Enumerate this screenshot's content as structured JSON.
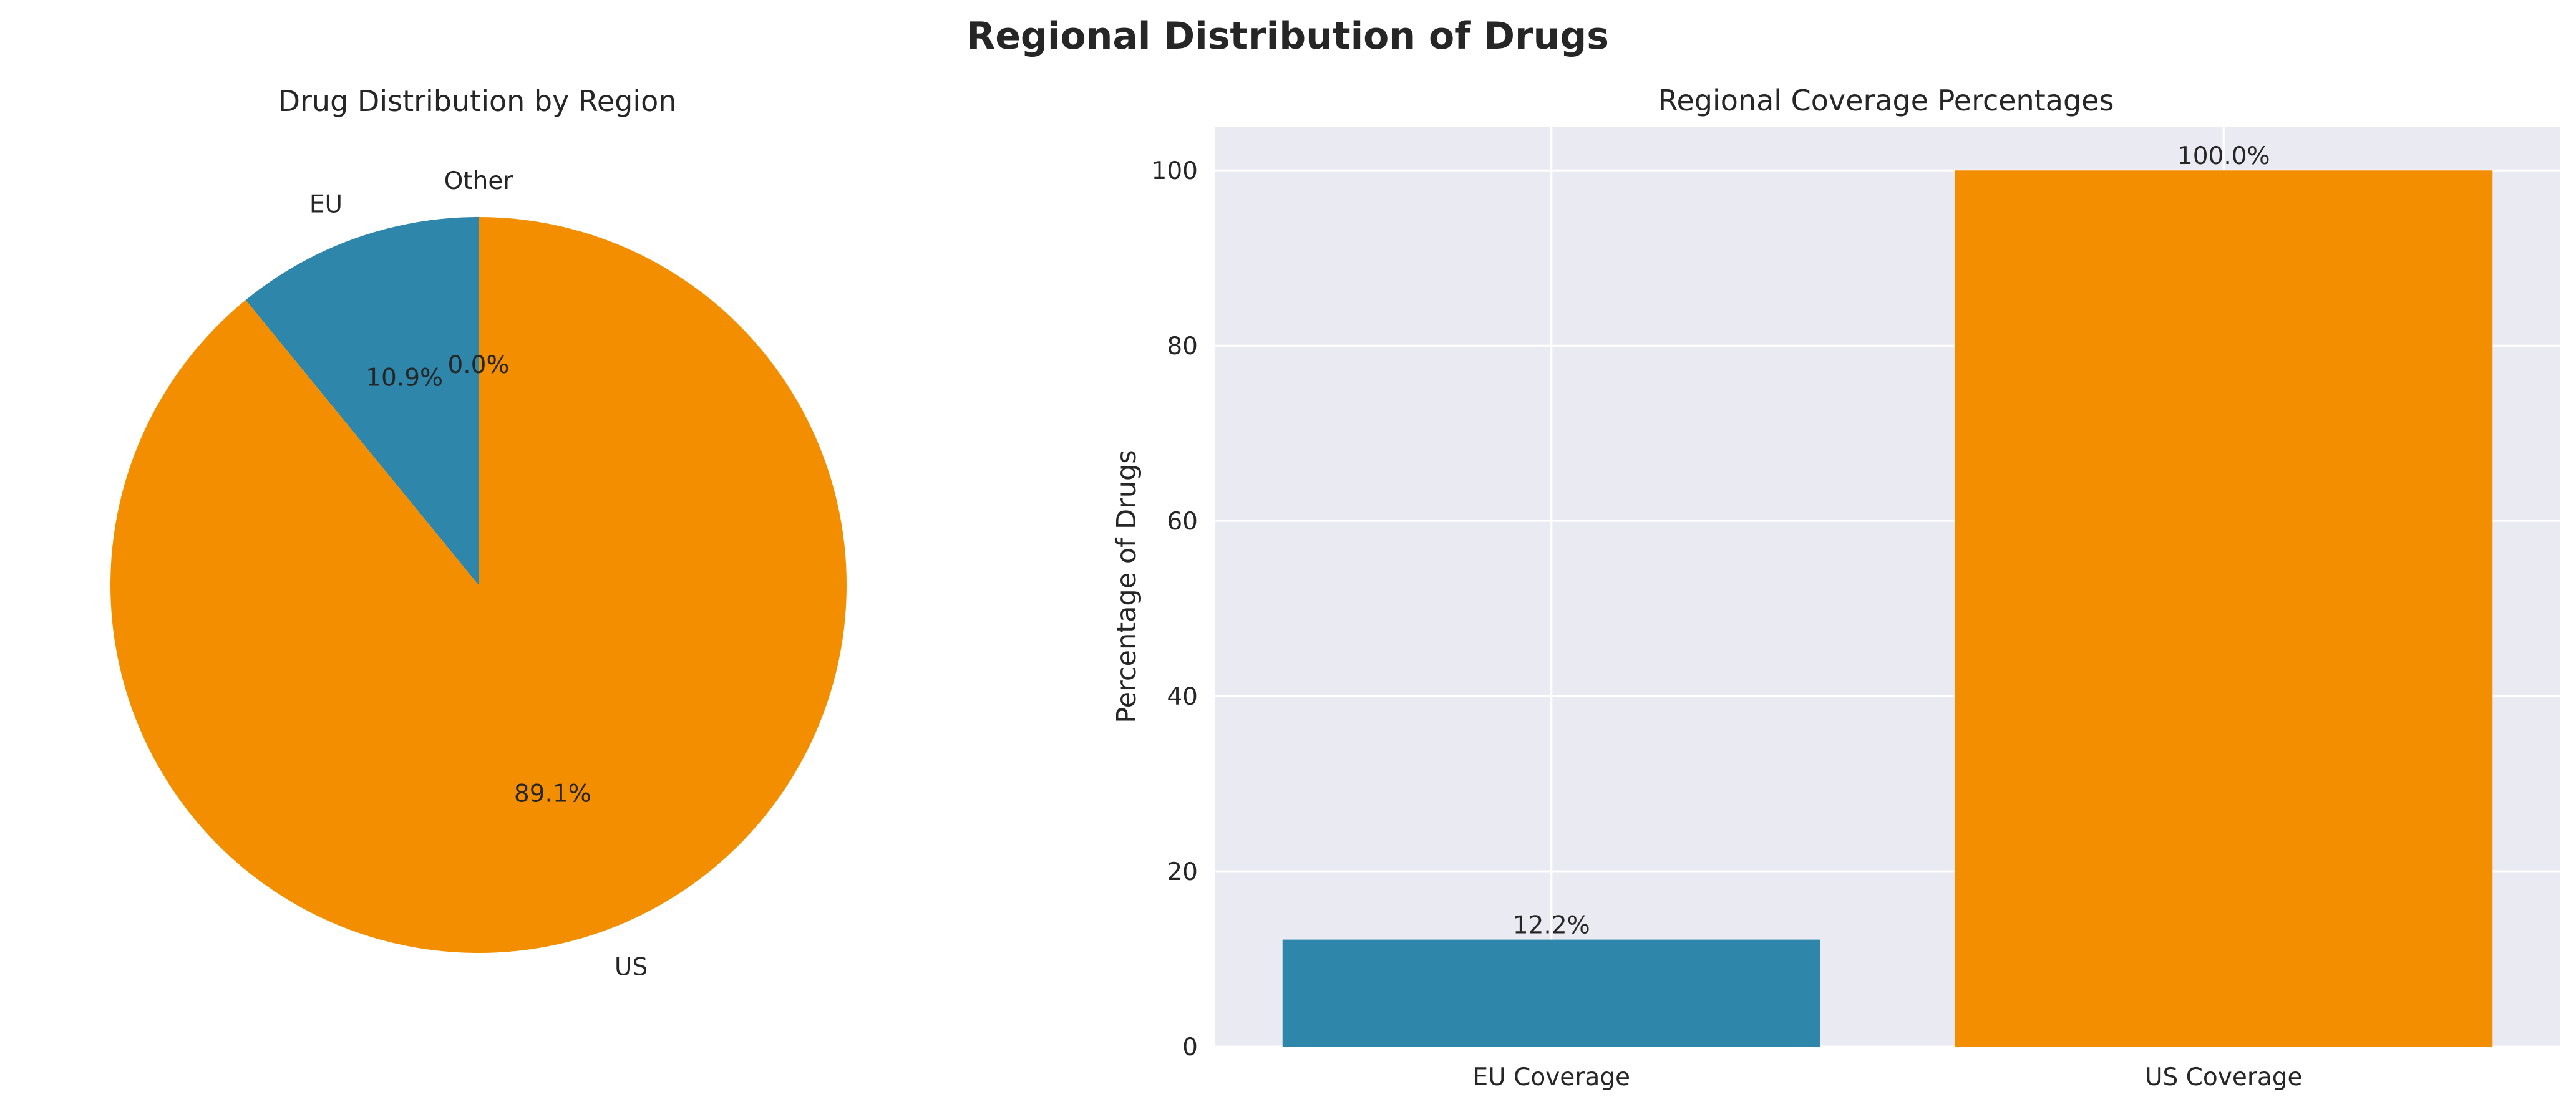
{
  "figure": {
    "title": "Regional Distribution of Drugs"
  },
  "chart_data": [
    {
      "type": "pie",
      "title": "Drug Distribution by Region",
      "labels": [
        "Other",
        "EU",
        "US"
      ],
      "values": [
        0.0,
        10.9,
        89.1
      ],
      "pct_labels": [
        "0.0%",
        "10.9%",
        "89.1%"
      ],
      "colors": [
        "#f28e00",
        "#2e86ab",
        "#f28e00"
      ],
      "start_angle": 90,
      "direction": "counterclockwise"
    },
    {
      "type": "bar",
      "title": "Regional Coverage Percentages",
      "categories": [
        "EU Coverage",
        "US Coverage"
      ],
      "values": [
        12.2,
        100.0
      ],
      "value_labels": [
        "12.2%",
        "100.0%"
      ],
      "colors": [
        "#2e86ab",
        "#f28e00"
      ],
      "xlabel": "",
      "ylabel": "Percentage of Drugs",
      "ylim": [
        0,
        105
      ],
      "yticks": [
        0,
        20,
        40,
        60,
        80,
        100
      ],
      "grid": true,
      "background": "#eaeaf2"
    }
  ]
}
